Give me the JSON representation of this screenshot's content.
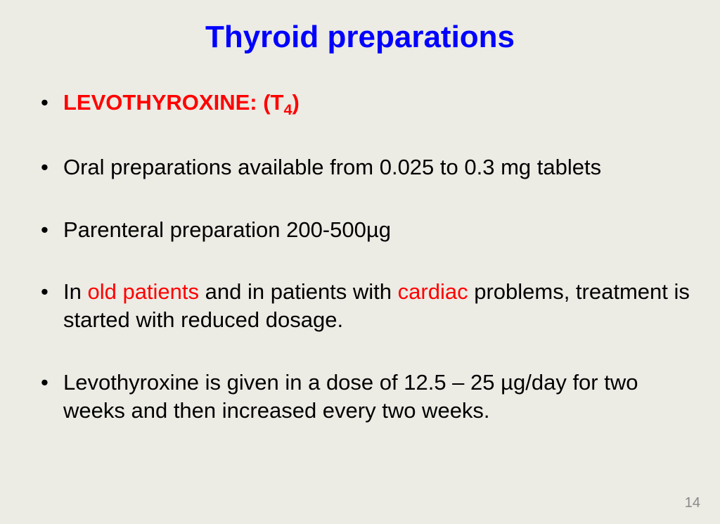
{
  "title": "Thyroid preparations",
  "bullets": {
    "b1_prefix": "LEVOTHYROXINE:  (T",
    "b1_sub": "4",
    "b1_suffix": ")",
    "b2": "Oral preparations available from 0.025 to 0.3 mg tablets",
    "b3": "Parenteral preparation  200-500µg",
    "b4_a": "In ",
    "b4_b": "old patients",
    "b4_c": " and in patients with ",
    "b4_d": "cardiac",
    "b4_e": " problems, treatment is started with reduced dosage.",
    "b5": "Levothyroxine is given in a dose of 12.5 – 25 µg/day for two weeks and then increased every two weeks."
  },
  "page_number": "14",
  "colors": {
    "background": "#ecebe4",
    "title": "#0000ff",
    "body": "#000000",
    "highlight": "#ff0000",
    "pagenum": "#888888"
  }
}
